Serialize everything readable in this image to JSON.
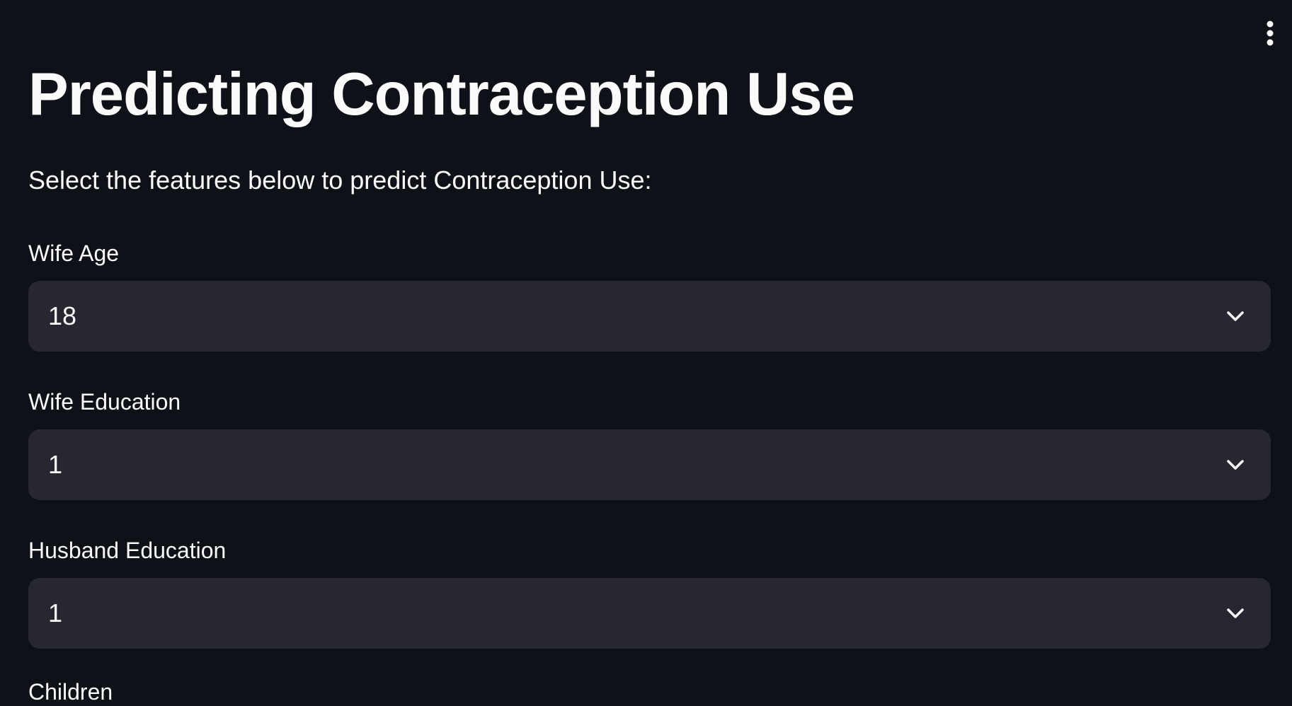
{
  "header": {
    "menu_icon": "vertical-ellipsis-icon"
  },
  "main": {
    "title": "Predicting Contraception Use",
    "subtitle": "Select the features below to predict Contraception Use:",
    "fields": [
      {
        "label": "Wife Age",
        "value": "18",
        "icon": "chevron-down-icon"
      },
      {
        "label": "Wife Education",
        "value": "1",
        "icon": "chevron-down-icon"
      },
      {
        "label": "Husband Education",
        "value": "1",
        "icon": "chevron-down-icon"
      }
    ],
    "next_label_partial": "Children"
  },
  "colors": {
    "background": "#0e1117",
    "select_background": "#262730",
    "text": "#fafafa"
  }
}
